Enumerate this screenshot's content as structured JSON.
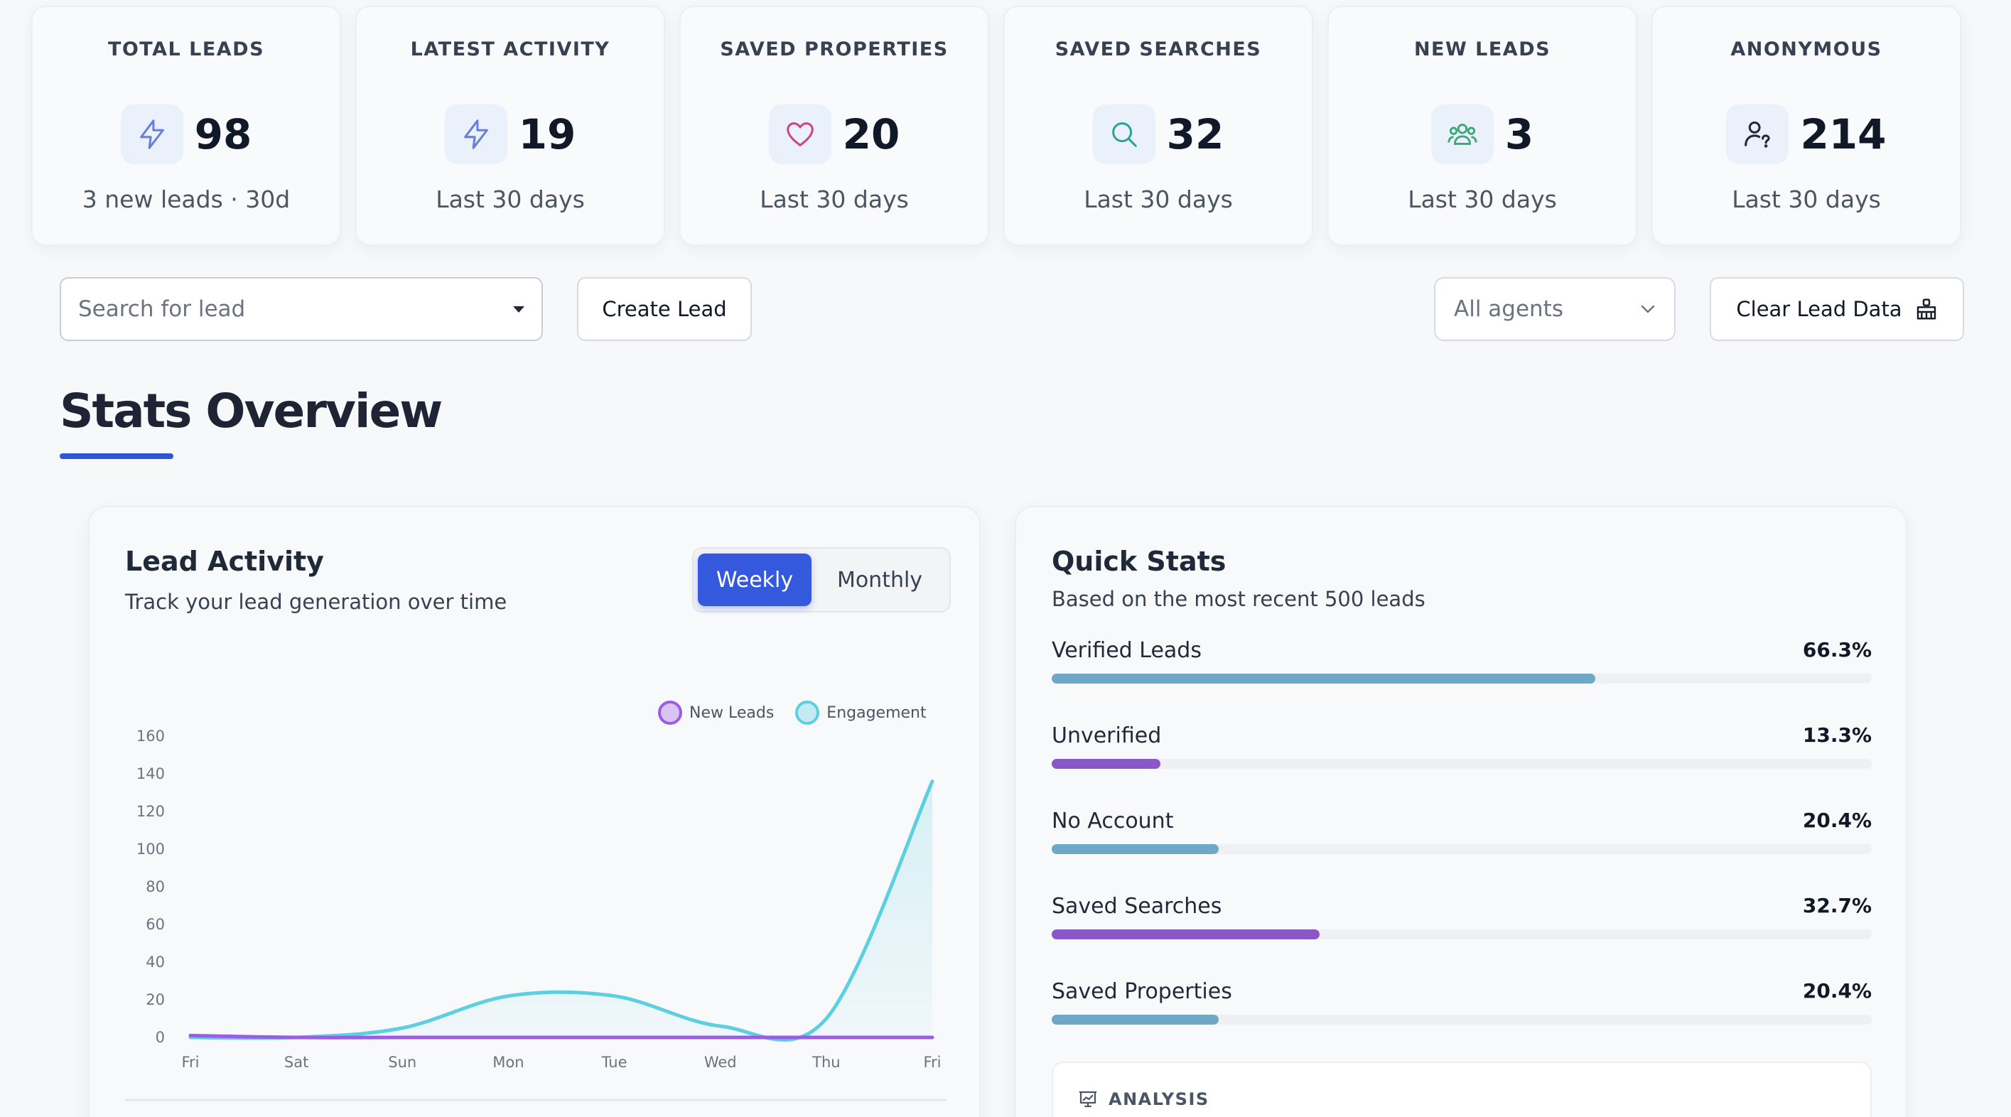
{
  "stats": [
    {
      "title": "TOTAL LEADS",
      "value": "98",
      "sub": "3 new leads · 30d",
      "icon": "bolt-icon",
      "color": "#6b7fd6"
    },
    {
      "title": "LATEST ACTIVITY",
      "value": "19",
      "sub": "Last 30 days",
      "icon": "bolt-icon",
      "color": "#6b7fd6"
    },
    {
      "title": "SAVED PROPERTIES",
      "value": "20",
      "sub": "Last 30 days",
      "icon": "heart-icon",
      "color": "#d1467a"
    },
    {
      "title": "SAVED SEARCHES",
      "value": "32",
      "sub": "Last 30 days",
      "icon": "search-icon",
      "color": "#2fa39a"
    },
    {
      "title": "NEW LEADS",
      "value": "3",
      "sub": "Last 30 days",
      "icon": "users-icon",
      "color": "#3aa877"
    },
    {
      "title": "ANONYMOUS",
      "value": "214",
      "sub": "Last 30 days",
      "icon": "user-question-icon",
      "color": "#1f2937"
    }
  ],
  "toolbar": {
    "search_placeholder": "Search for lead",
    "create_label": "Create Lead",
    "agents_label": "All agents",
    "clear_label": "Clear Lead Data"
  },
  "section": {
    "title": "Stats Overview"
  },
  "lead_activity": {
    "title": "Lead Activity",
    "subtitle": "Track your lead generation over time",
    "toggle_weekly": "Weekly",
    "toggle_monthly": "Monthly",
    "chart_data": {
      "type": "area",
      "x": [
        "Fri",
        "Sat",
        "Sun",
        "Mon",
        "Tue",
        "Wed",
        "Thu",
        "Fri"
      ],
      "ylim": [
        0,
        160
      ],
      "yticks": [
        0,
        20,
        40,
        60,
        80,
        100,
        120,
        140,
        160
      ],
      "series": [
        {
          "name": "New Leads",
          "values": [
            1,
            0,
            0,
            0,
            0,
            0,
            0,
            0
          ],
          "color": "#9b5de5"
        },
        {
          "name": "Engagement",
          "values": [
            0,
            0,
            5,
            22,
            22,
            6,
            10,
            136
          ],
          "color": "#5ccfe0"
        }
      ],
      "legend": "top-right",
      "grid": false
    }
  },
  "quick_stats": {
    "title": "Quick Stats",
    "subtitle": "Based on the most recent 500 leads",
    "items": [
      {
        "label": "Verified Leads",
        "value": "66.3%",
        "fraction": 0.663,
        "color": "#6fa8c7"
      },
      {
        "label": "Unverified",
        "value": "13.3%",
        "fraction": 0.133,
        "color": "#8a57c9"
      },
      {
        "label": "No Account",
        "value": "20.4%",
        "fraction": 0.204,
        "color": "#6fa8c7"
      },
      {
        "label": "Saved Searches",
        "value": "32.7%",
        "fraction": 0.327,
        "color": "#8a57c9"
      },
      {
        "label": "Saved Properties",
        "value": "20.4%",
        "fraction": 0.204,
        "color": "#6fa8c7"
      }
    ],
    "analysis_label": "ANALYSIS"
  }
}
